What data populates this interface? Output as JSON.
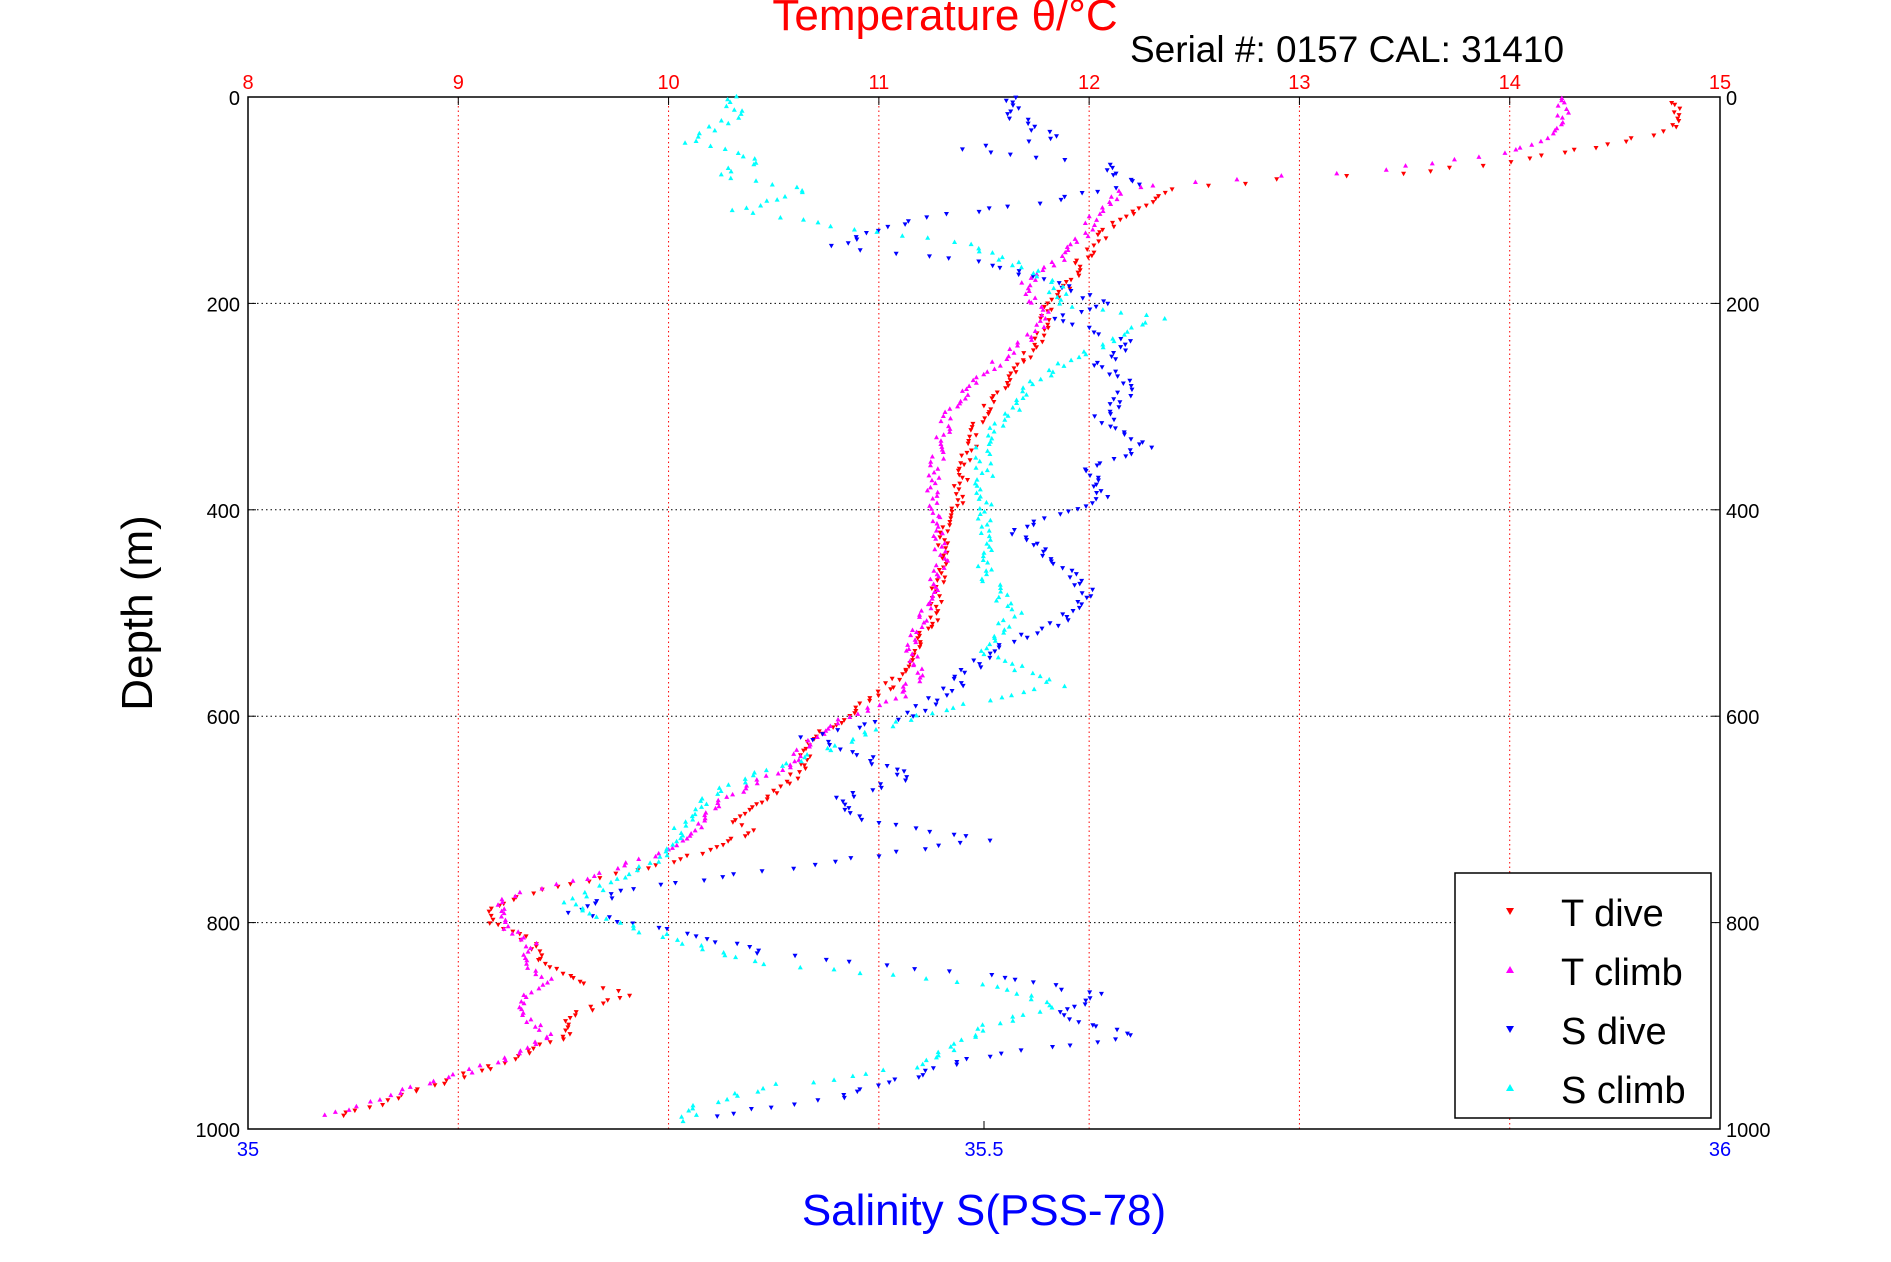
{
  "chart_data": {
    "type": "scatter",
    "title": "Temperature θ/°C",
    "subtitle": "Serial #: 0157  CAL: 31410",
    "ylabel": "Depth (m)",
    "xlabel": "Salinity S(PSS-78)",
    "temperature_axis": {
      "label": "Temperature θ/°C",
      "range": [
        8,
        15
      ],
      "ticks": [
        "8",
        "9",
        "10",
        "11",
        "12",
        "13",
        "14",
        "15"
      ],
      "color": "#ff0000"
    },
    "salinity_axis": {
      "label": "Salinity S(PSS-78)",
      "range": [
        35,
        36
      ],
      "ticks": [
        "35",
        "35.5",
        "36"
      ],
      "color": "#0000ff"
    },
    "depth_axis": {
      "range": [
        0,
        1000
      ],
      "ticks": [
        "0",
        "200",
        "400",
        "600",
        "800",
        "1000"
      ],
      "reversed": true
    },
    "grid": true,
    "legend_position": "bottom-right",
    "series": [
      {
        "name": "T dive",
        "axis": "temperature",
        "color": "#ff0000",
        "marker": "triangle-down",
        "points": [
          [
            14.8,
            5
          ],
          [
            14.78,
            30
          ],
          [
            14.6,
            40
          ],
          [
            14.1,
            60
          ],
          [
            13.5,
            75
          ],
          [
            12.9,
            80
          ],
          [
            12.4,
            90
          ],
          [
            12.25,
            105
          ],
          [
            12.1,
            125
          ],
          [
            12.0,
            150
          ],
          [
            11.95,
            165
          ],
          [
            11.9,
            185
          ],
          [
            11.82,
            200
          ],
          [
            11.78,
            220
          ],
          [
            11.75,
            240
          ],
          [
            11.65,
            260
          ],
          [
            11.6,
            280
          ],
          [
            11.5,
            305
          ],
          [
            11.45,
            330
          ],
          [
            11.4,
            360
          ],
          [
            11.38,
            390
          ],
          [
            11.3,
            420
          ],
          [
            11.3,
            450
          ],
          [
            11.28,
            480
          ],
          [
            11.25,
            510
          ],
          [
            11.15,
            540
          ],
          [
            11.1,
            560
          ],
          [
            11.0,
            580
          ],
          [
            10.85,
            600
          ],
          [
            10.7,
            620
          ],
          [
            10.65,
            640
          ],
          [
            10.6,
            660
          ],
          [
            10.45,
            680
          ],
          [
            10.3,
            700
          ],
          [
            10.4,
            710
          ],
          [
            10.2,
            730
          ],
          [
            9.85,
            750
          ],
          [
            9.6,
            760
          ],
          [
            9.3,
            775
          ],
          [
            9.15,
            790
          ],
          [
            9.15,
            800
          ],
          [
            9.35,
            820
          ],
          [
            9.4,
            840
          ],
          [
            9.6,
            860
          ],
          [
            9.8,
            870
          ],
          [
            9.55,
            890
          ],
          [
            9.5,
            910
          ],
          [
            9.3,
            930
          ],
          [
            9.0,
            950
          ],
          [
            8.7,
            970
          ],
          [
            8.4,
            990
          ]
        ]
      },
      {
        "name": "T climb",
        "axis": "temperature",
        "color": "#ff00ff",
        "marker": "triangle-up",
        "points": [
          [
            14.25,
            0
          ],
          [
            14.25,
            30
          ],
          [
            14.0,
            55
          ],
          [
            13.4,
            70
          ],
          [
            12.7,
            80
          ],
          [
            12.3,
            85
          ],
          [
            12.15,
            90
          ],
          [
            12.05,
            110
          ],
          [
            12.0,
            125
          ],
          [
            11.95,
            140
          ],
          [
            11.85,
            160
          ],
          [
            11.7,
            180
          ],
          [
            11.75,
            200
          ],
          [
            11.8,
            215
          ],
          [
            11.7,
            235
          ],
          [
            11.55,
            260
          ],
          [
            11.45,
            280
          ],
          [
            11.35,
            300
          ],
          [
            11.3,
            330
          ],
          [
            11.27,
            360
          ],
          [
            11.25,
            390
          ],
          [
            11.28,
            420
          ],
          [
            11.3,
            450
          ],
          [
            11.25,
            480
          ],
          [
            11.2,
            510
          ],
          [
            11.15,
            540
          ],
          [
            11.2,
            560
          ],
          [
            11.1,
            580
          ],
          [
            10.85,
            600
          ],
          [
            10.65,
            630
          ],
          [
            10.55,
            650
          ],
          [
            10.35,
            670
          ],
          [
            10.2,
            690
          ],
          [
            10.15,
            710
          ],
          [
            10.0,
            730
          ],
          [
            9.55,
            760
          ],
          [
            9.3,
            770
          ],
          [
            9.2,
            780
          ],
          [
            9.2,
            800
          ],
          [
            9.35,
            820
          ],
          [
            9.3,
            840
          ],
          [
            9.45,
            855
          ],
          [
            9.3,
            870
          ],
          [
            9.3,
            890
          ],
          [
            9.45,
            910
          ],
          [
            9.25,
            930
          ],
          [
            8.95,
            950
          ],
          [
            8.7,
            965
          ],
          [
            8.35,
            990
          ]
        ]
      },
      {
        "name": "S dive",
        "axis": "salinity",
        "color": "#0000ff",
        "marker": "triangle-down",
        "points": [
          [
            35.52,
            0
          ],
          [
            35.52,
            20
          ],
          [
            35.55,
            40
          ],
          [
            35.48,
            50
          ],
          [
            35.58,
            65
          ],
          [
            35.6,
            85
          ],
          [
            35.55,
            100
          ],
          [
            35.45,
            120
          ],
          [
            35.4,
            145
          ],
          [
            35.5,
            160
          ],
          [
            35.55,
            180
          ],
          [
            35.58,
            200
          ],
          [
            35.55,
            215
          ],
          [
            35.6,
            240
          ],
          [
            35.58,
            260
          ],
          [
            35.6,
            280
          ],
          [
            35.58,
            310
          ],
          [
            35.61,
            340
          ],
          [
            35.57,
            360
          ],
          [
            35.58,
            390
          ],
          [
            35.52,
            420
          ],
          [
            35.55,
            450
          ],
          [
            35.57,
            480
          ],
          [
            35.55,
            510
          ],
          [
            35.5,
            540
          ],
          [
            35.48,
            570
          ],
          [
            35.45,
            600
          ],
          [
            35.38,
            620
          ],
          [
            35.42,
            640
          ],
          [
            35.45,
            660
          ],
          [
            35.4,
            680
          ],
          [
            35.42,
            700
          ],
          [
            35.5,
            720
          ],
          [
            35.35,
            750
          ],
          [
            35.25,
            770
          ],
          [
            35.22,
            790
          ],
          [
            35.3,
            810
          ],
          [
            35.35,
            830
          ],
          [
            35.5,
            850
          ],
          [
            35.58,
            870
          ],
          [
            35.55,
            890
          ],
          [
            35.6,
            910
          ],
          [
            35.5,
            930
          ],
          [
            35.45,
            950
          ],
          [
            35.4,
            970
          ],
          [
            35.3,
            990
          ]
        ]
      },
      {
        "name": "S climb",
        "axis": "salinity",
        "color": "#00ffff",
        "marker": "triangle-up",
        "points": [
          [
            35.33,
            0
          ],
          [
            35.33,
            20
          ],
          [
            35.3,
            45
          ],
          [
            35.35,
            60
          ],
          [
            35.32,
            75
          ],
          [
            35.38,
            90
          ],
          [
            35.33,
            110
          ],
          [
            35.4,
            125
          ],
          [
            35.48,
            140
          ],
          [
            35.52,
            160
          ],
          [
            35.55,
            180
          ],
          [
            35.55,
            200
          ],
          [
            35.62,
            215
          ],
          [
            35.58,
            240
          ],
          [
            35.54,
            270
          ],
          [
            35.52,
            300
          ],
          [
            35.5,
            340
          ],
          [
            35.5,
            380
          ],
          [
            35.5,
            420
          ],
          [
            35.5,
            460
          ],
          [
            35.52,
            500
          ],
          [
            35.5,
            540
          ],
          [
            35.55,
            570
          ],
          [
            35.45,
            600
          ],
          [
            35.38,
            640
          ],
          [
            35.32,
            670
          ],
          [
            35.3,
            700
          ],
          [
            35.28,
            740
          ],
          [
            35.22,
            780
          ],
          [
            35.25,
            800
          ],
          [
            35.3,
            820
          ],
          [
            35.35,
            840
          ],
          [
            35.5,
            860
          ],
          [
            35.55,
            880
          ],
          [
            35.5,
            900
          ],
          [
            35.48,
            920
          ],
          [
            35.45,
            940
          ],
          [
            35.35,
            960
          ],
          [
            35.3,
            980
          ],
          [
            35.3,
            995
          ]
        ]
      }
    ]
  }
}
